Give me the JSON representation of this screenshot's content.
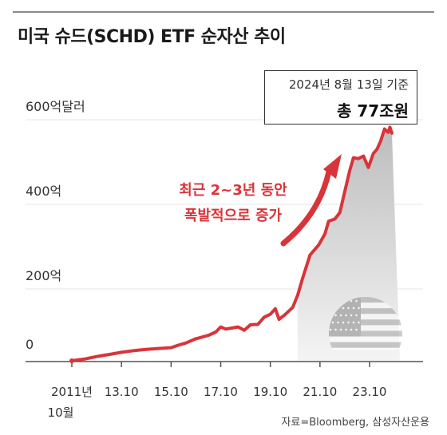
{
  "title": "미국 슈드(SCHD) ETF 순자산 추이",
  "info_box": {
    "date": "2024년 8월 13일 기준",
    "total": "총 77조원"
  },
  "annotation": {
    "line1": "최근 2~3년 동안",
    "line2": "폭발적으로 증가"
  },
  "source": "자료=Bloomberg, 삼성자산운용",
  "colors": {
    "line": "#d8343a",
    "axis": "#555555",
    "area_top": "#bdbdbd",
    "area_bottom": "#f4f4f4"
  },
  "icons": {
    "arrow": "curved-up-arrow-icon",
    "flag": "us-flag-icon"
  },
  "chart_data": {
    "type": "line",
    "ylabel": "",
    "yticks": [
      {
        "value": 0,
        "label": "0"
      },
      {
        "value": 200,
        "label": "200억"
      },
      {
        "value": 400,
        "label": "400억"
      },
      {
        "value": 600,
        "label": "600억달러"
      }
    ],
    "ylim": [
      0,
      600
    ],
    "xlim": [
      2011.8,
      2024.75
    ],
    "xticks": [
      {
        "value": 2011.8,
        "label": "2011년",
        "label2": "10월"
      },
      {
        "value": 2013.8,
        "label": "13.10"
      },
      {
        "value": 2015.8,
        "label": "15.10"
      },
      {
        "value": 2017.8,
        "label": "17.10"
      },
      {
        "value": 2019.8,
        "label": "19.10"
      },
      {
        "value": 2021.8,
        "label": "21.10"
      },
      {
        "value": 2023.8,
        "label": "23.10"
      }
    ],
    "series": [
      {
        "points": [
          [
            2011.8,
            0
          ],
          [
            2012.3,
            4
          ],
          [
            2012.8,
            10
          ],
          [
            2013.3,
            15
          ],
          [
            2013.8,
            20
          ],
          [
            2014.3,
            24
          ],
          [
            2014.8,
            27
          ],
          [
            2015.3,
            29
          ],
          [
            2015.8,
            31
          ],
          [
            2016.1,
            37
          ],
          [
            2016.4,
            42
          ],
          [
            2016.8,
            52
          ],
          [
            2017.3,
            60
          ],
          [
            2017.6,
            68
          ],
          [
            2017.8,
            80
          ],
          [
            2018.0,
            75
          ],
          [
            2018.5,
            80
          ],
          [
            2018.75,
            72
          ],
          [
            2019.0,
            85
          ],
          [
            2019.3,
            86
          ],
          [
            2019.55,
            103
          ],
          [
            2019.8,
            110
          ],
          [
            2020.0,
            123
          ],
          [
            2020.15,
            98
          ],
          [
            2020.35,
            107
          ],
          [
            2020.7,
            126
          ],
          [
            2020.9,
            155
          ],
          [
            2021.1,
            195
          ],
          [
            2021.4,
            250
          ],
          [
            2021.75,
            274
          ],
          [
            2022.0,
            300
          ],
          [
            2022.15,
            330
          ],
          [
            2022.4,
            335
          ],
          [
            2022.6,
            350
          ],
          [
            2022.8,
            400
          ],
          [
            2023.0,
            450
          ],
          [
            2023.15,
            480
          ],
          [
            2023.35,
            478
          ],
          [
            2023.55,
            484
          ],
          [
            2023.75,
            457
          ],
          [
            2023.95,
            490
          ],
          [
            2024.1,
            500
          ],
          [
            2024.25,
            520
          ],
          [
            2024.4,
            548
          ],
          [
            2024.55,
            540
          ],
          [
            2024.62,
            552
          ],
          [
            2024.7,
            538
          ]
        ]
      }
    ]
  }
}
